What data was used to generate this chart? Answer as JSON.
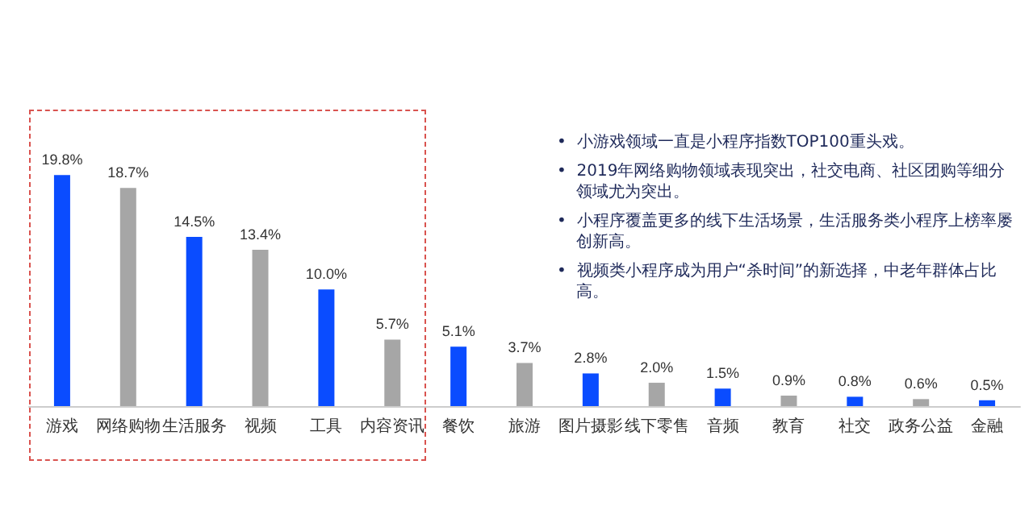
{
  "chart_data": {
    "type": "bar",
    "categories": [
      "游戏",
      "网络购物",
      "生活服务",
      "视频",
      "工具",
      "内容资讯",
      "餐饮",
      "旅游",
      "图片摄影",
      "线下零售",
      "音频",
      "教育",
      "社交",
      "政务公益",
      "金融"
    ],
    "values": [
      19.8,
      18.7,
      14.5,
      13.4,
      10.0,
      5.7,
      5.1,
      3.7,
      2.8,
      2.0,
      1.5,
      0.9,
      0.8,
      0.6,
      0.5
    ],
    "value_labels": [
      "19.8%",
      "18.7%",
      "14.5%",
      "13.4%",
      "10.0%",
      "5.7%",
      "5.1%",
      "3.7%",
      "2.8%",
      "2.0%",
      "1.5%",
      "0.9%",
      "0.8%",
      "0.6%",
      "0.5%"
    ],
    "colors": [
      "#0a4cff",
      "#a6a6a6",
      "#0a4cff",
      "#a6a6a6",
      "#0a4cff",
      "#a6a6a6",
      "#0a4cff",
      "#a6a6a6",
      "#0a4cff",
      "#a6a6a6",
      "#0a4cff",
      "#a6a6a6",
      "#0a4cff",
      "#a6a6a6",
      "#0a4cff"
    ],
    "annotations": [
      "•  小游戏领域一直是小程序指数TOP100重头戏。",
      "•  2019年网络购物领域表现突出，社交电商、社区团购等细分领域尤为突出。",
      "•  小程序覆盖更多的线下生活场景，生活服务类小程序上榜率屡创新高。",
      "•  视频类小程序成为用户“杀时间”的新选择，中老年群体占比高。"
    ]
  }
}
